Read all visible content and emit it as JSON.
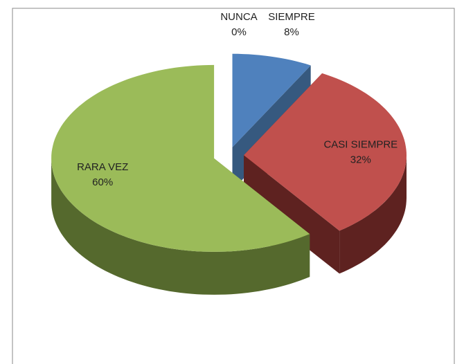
{
  "chart_data": {
    "type": "pie",
    "categories": [
      "NUNCA",
      "SIEMPRE",
      "CASI SIEMPRE",
      "RARA VEZ"
    ],
    "values": [
      0,
      8,
      32,
      60
    ],
    "value_labels": [
      "0%",
      "8%",
      "32%",
      "60%"
    ],
    "colors": [
      "#8064a2",
      "#4f81bd",
      "#c0504d",
      "#9bbb59"
    ],
    "side_colors": [
      "#4d3b63",
      "#36597f",
      "#5e2220",
      "#55692d"
    ]
  }
}
